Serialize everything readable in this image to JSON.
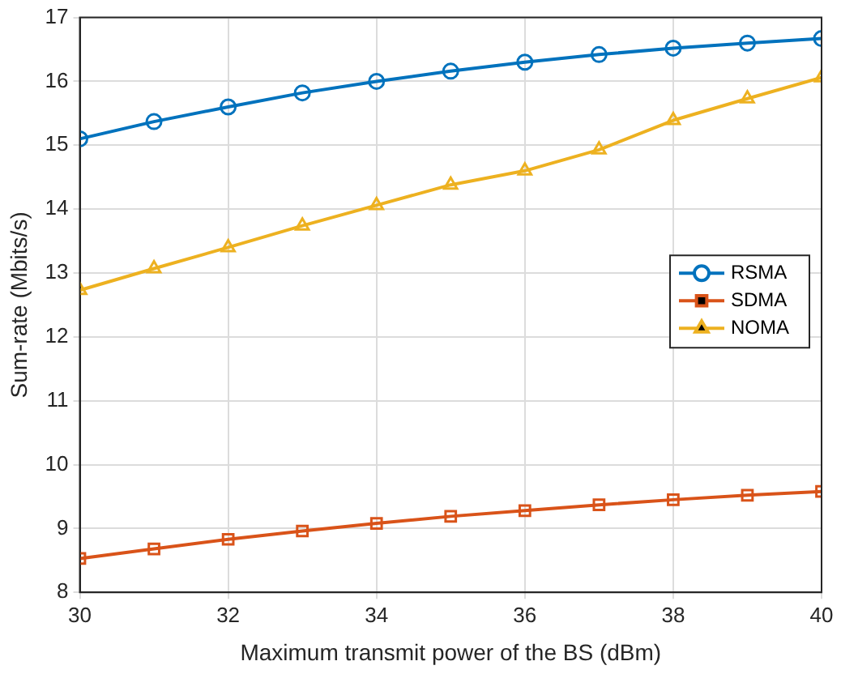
{
  "chart_data": {
    "type": "line",
    "xlabel": "Maximum transmit power of the BS (dBm)",
    "ylabel": "Sum-rate (Mbits/s)",
    "x": [
      30,
      31,
      32,
      33,
      34,
      35,
      36,
      37,
      38,
      39,
      40
    ],
    "series": [
      {
        "name": "RSMA",
        "color": "#0072bd",
        "marker": "circle",
        "values": [
          15.1,
          15.37,
          15.6,
          15.82,
          16.0,
          16.16,
          16.3,
          16.42,
          16.52,
          16.6,
          16.67
        ]
      },
      {
        "name": "SDMA",
        "color": "#d95319",
        "marker": "square",
        "values": [
          8.53,
          8.68,
          8.83,
          8.96,
          9.08,
          9.19,
          9.28,
          9.37,
          9.45,
          9.52,
          9.58
        ]
      },
      {
        "name": "NOMA",
        "color": "#edb120",
        "marker": "triangle",
        "values": [
          12.73,
          13.07,
          13.4,
          13.74,
          14.06,
          14.38,
          14.6,
          14.93,
          15.39,
          15.73,
          16.06
        ]
      }
    ],
    "xlim": [
      30,
      40
    ],
    "xticks": [
      30,
      32,
      34,
      36,
      38,
      40
    ],
    "ylim": [
      8,
      17
    ],
    "yticks": [
      8,
      9,
      10,
      11,
      12,
      13,
      14,
      15,
      16,
      17
    ],
    "grid": true,
    "legend": "right",
    "line_style": "solid"
  }
}
